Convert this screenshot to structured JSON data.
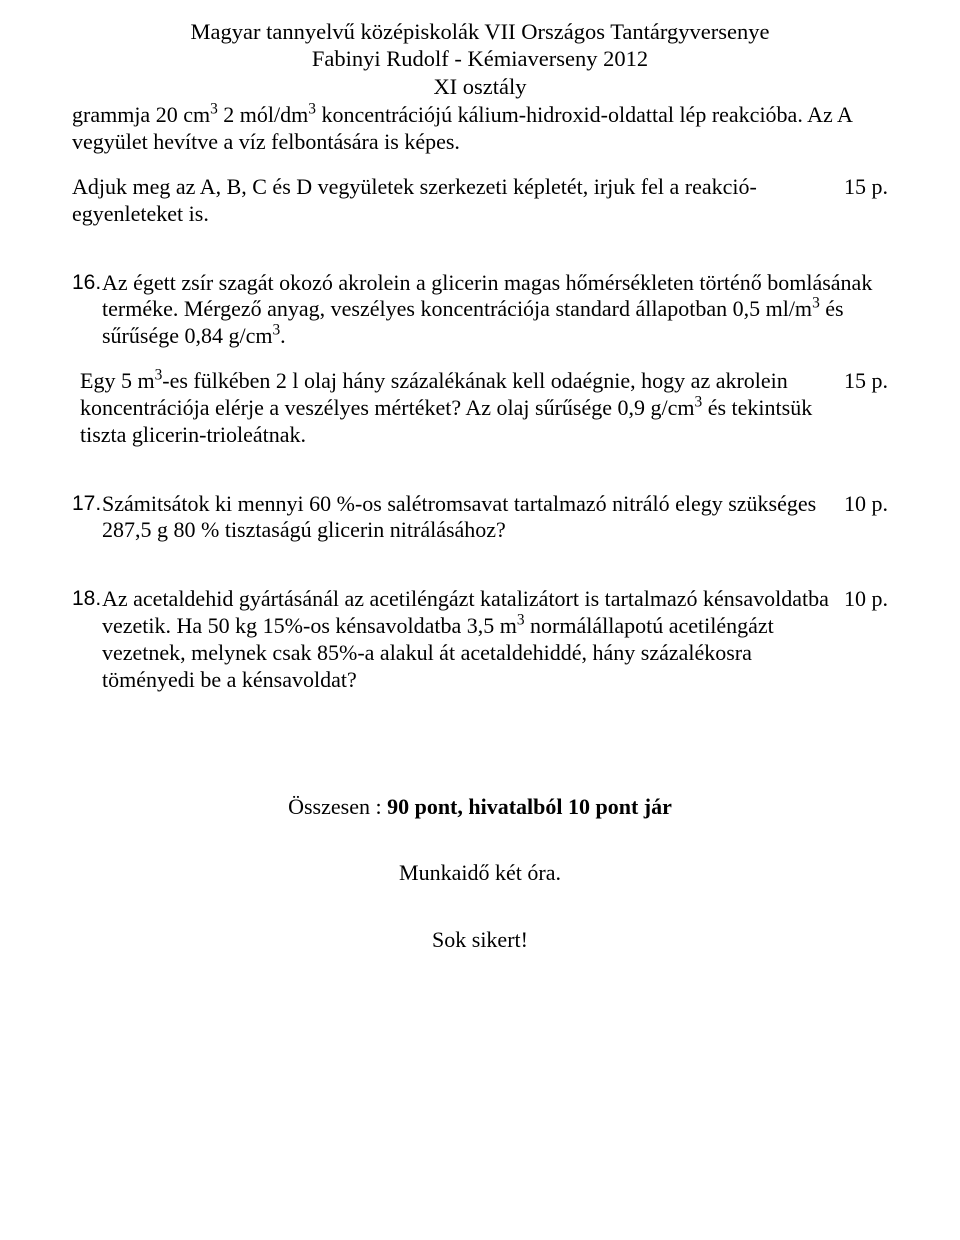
{
  "header": {
    "line1": "Magyar  tannyelvű középiskolák VII Országos Tantárgyversenye",
    "line2": "Fabinyi Rudolf - Kémiaverseny 2012",
    "line3": "XI osztály"
  },
  "q15_cont": {
    "p1_html": "grammja 20 cm<sup>3</sup> 2 mól/dm<sup>3</sup> koncentrációjú kálium-hidroxid-oldattal lép reakcióba. Az A vegyület hevítve a víz felbontására is képes.",
    "p2": "Adjuk meg az A, B, C és D vegyületek szerkezeti képletét, irjuk fel a reakció-egyenleteket is.",
    "p2_pts": "15 p."
  },
  "q16": {
    "num": "16.",
    "p1_html": "Az égett zsír szagát okozó akrolein a glicerin magas hőmérsékleten történő bomlásának terméke. Mérgező anyag, veszélyes koncentrációja standard állapotban 0,5 ml/m<sup>3</sup> és sűrűsége 0,84 g/cm<sup>3</sup>.",
    "p2_html": "Egy 5 m<sup>3</sup>-es fülkében 2 l olaj hány százalékának kell odaégnie, hogy az akrolein koncentrációja elérje a veszélyes mértéket? Az olaj sűrűsége 0,9 g/cm<sup>3</sup> és tekintsük tiszta glicerin-trioleátnak.",
    "p2_pts": "15 p."
  },
  "q17": {
    "num": "17.",
    "p1": "Számitsátok ki mennyi 60 %-os salétromsavat tartalmazó nitráló elegy szükséges 287,5 g 80 % tisztaságú glicerin nitrálásához?",
    "pts": "10 p."
  },
  "q18": {
    "num": "18.",
    "p1_html": "Az acetaldehid gyártásánál az acetiléngázt katalizátort is tartalmazó kénsavoldatba vezetik. Ha 50 kg 15%-os kénsavoldatba 3,5 m<sup>3</sup> normálállapotú acetiléngázt vezetnek, melynek csak 85%-a alakul át acetaldehiddé, hány százalékosra töményedi be a kénsavoldat?",
    "pts": "10 p."
  },
  "footer": {
    "line1_prefix": "Összesen : ",
    "line1_bold": "90 pont, hivatalból 10 pont jár",
    "line2": "Munkaidő két óra.",
    "line3": "Sok sikert!"
  }
}
